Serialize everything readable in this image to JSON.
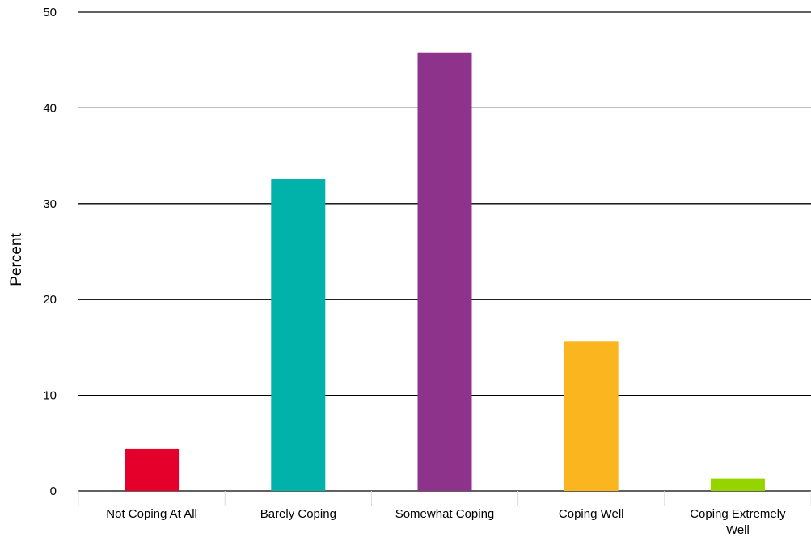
{
  "chart_data": {
    "type": "bar",
    "ylabel": "Percent",
    "xlabel": "",
    "ylim": [
      0,
      50
    ],
    "yticks": [
      0,
      10,
      20,
      30,
      40,
      50
    ],
    "grid": true,
    "categories": [
      [
        "Not Coping At All"
      ],
      [
        "Barely Coping"
      ],
      [
        "Somewhat Coping"
      ],
      [
        "Coping Well"
      ],
      [
        "Coping Extremely",
        "Well"
      ]
    ],
    "values": [
      4.4,
      32.6,
      45.8,
      15.6,
      1.3
    ],
    "colors": [
      "#E4002B",
      "#00B2A9",
      "#8E338C",
      "#FBB61F",
      "#96D400"
    ]
  }
}
